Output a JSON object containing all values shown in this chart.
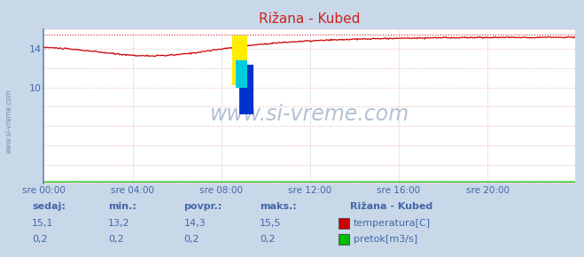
{
  "title": "Rižana - Kubed",
  "bg_color": "#c8d8e8",
  "plot_bg_color": "#ffffff",
  "grid_color": "#ddaaaa",
  "grid_color2": "#aabbdd",
  "text_color": "#4466aa",
  "title_color": "#cc2222",
  "xlabel_ticks": [
    "sre 00:00",
    "sre 04:00",
    "sre 08:00",
    "sre 12:00",
    "sre 16:00",
    "sre 20:00"
  ],
  "xlabel_ticks_pos": [
    0,
    96,
    192,
    288,
    384,
    480
  ],
  "xlim": [
    0,
    575
  ],
  "ylim": [
    0,
    16
  ],
  "ytick_vals": [
    10,
    14
  ],
  "ytick_labels": [
    "10",
    "14"
  ],
  "temp_max_line": 15.5,
  "watermark": "www.si-vreme.com",
  "watermark_color": "#aabbcc",
  "legend_title": "Rižana - Kubed",
  "legend_items": [
    {
      "label": "temperatura[C]",
      "color": "#cc0000"
    },
    {
      "label": "pretok[m3/s]",
      "color": "#00bb00"
    }
  ],
  "stats": {
    "headers": [
      "sedaj:",
      "min.:",
      "povpr.:",
      "maks.:"
    ],
    "temp": [
      "15,1",
      "13,2",
      "14,3",
      "15,5"
    ],
    "flow": [
      "0,2",
      "0,2",
      "0,2",
      "0,2"
    ]
  },
  "left_border_color": "#6688bb",
  "bottom_border_color": "#cc2222",
  "spine_color": "#aabbcc"
}
